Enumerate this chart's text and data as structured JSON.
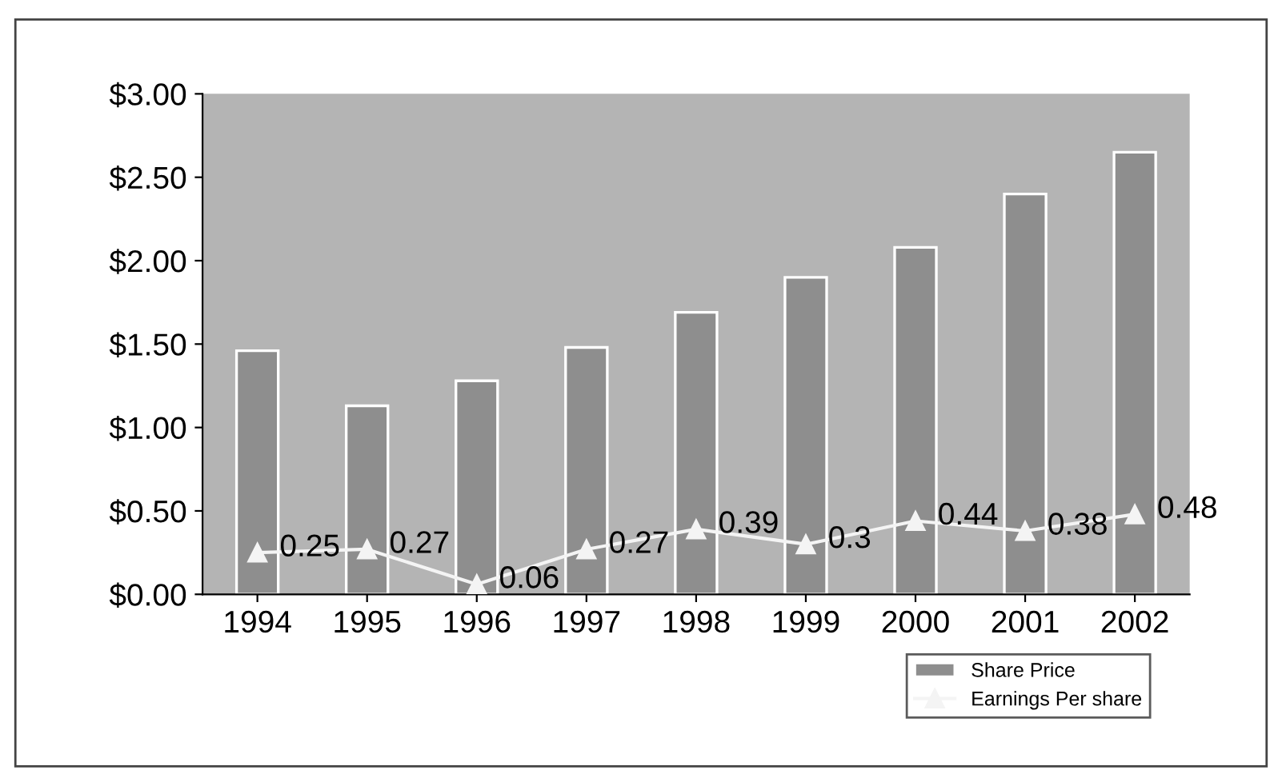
{
  "chart_data": {
    "type": "bar",
    "categories": [
      "1994",
      "1995",
      "1996",
      "1997",
      "1998",
      "1999",
      "2000",
      "2001",
      "2002"
    ],
    "series": [
      {
        "name": "Share Price",
        "color": "#8e8e8e",
        "values": [
          1.46,
          1.13,
          1.28,
          1.48,
          1.69,
          1.9,
          2.08,
          2.4,
          2.65
        ]
      },
      {
        "name": "Earnings Per share",
        "type": "line",
        "color": "#f4f4f4",
        "marker": "triangle",
        "data_labels": true,
        "values": [
          0.25,
          0.27,
          0.06,
          0.27,
          0.39,
          0.3,
          0.44,
          0.38,
          0.48
        ]
      }
    ],
    "ylim": [
      0,
      3
    ],
    "yticks": [
      {
        "value": 0,
        "label": "$0.00"
      },
      {
        "value": 0.5,
        "label": "$0.50"
      },
      {
        "value": 1,
        "label": "$1.00"
      },
      {
        "value": 1.5,
        "label": "$1.50"
      },
      {
        "value": 2,
        "label": "$2.00"
      },
      {
        "value": 2.5,
        "label": "$2.50"
      },
      {
        "value": 3,
        "label": "$3.00"
      }
    ],
    "grid": false,
    "legend": "bottom right"
  }
}
